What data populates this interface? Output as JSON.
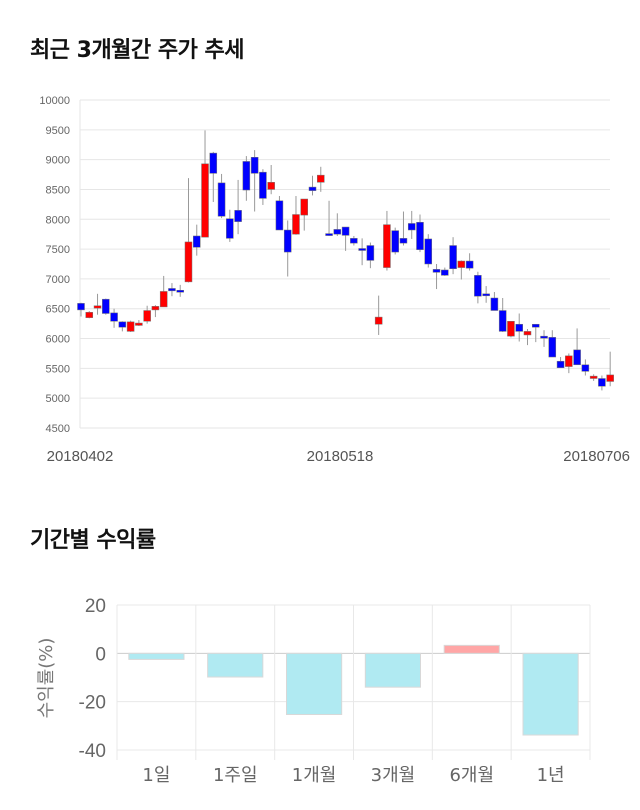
{
  "chart_data": [
    {
      "type": "candlestick",
      "title": "최근 3개월간 주가 추세",
      "ylim": [
        4500,
        10000
      ],
      "yticks": [
        "10000",
        "9500",
        "9000",
        "8500",
        "8000",
        "7500",
        "7000",
        "6500",
        "6000",
        "5500",
        "5000",
        "4500"
      ],
      "xticks": [
        "20180402",
        "20180518",
        "20180706"
      ],
      "up_color": "#ff0000",
      "down_color": "#0000ff",
      "candles": [
        [
          6590,
          6480,
          6600,
          6370
        ],
        [
          6350,
          6440,
          6460,
          6340
        ],
        [
          6510,
          6550,
          6750,
          6400
        ],
        [
          6660,
          6420,
          6670,
          6400
        ],
        [
          6430,
          6290,
          6500,
          6180
        ],
        [
          6280,
          6190,
          6290,
          6120
        ],
        [
          6120,
          6280,
          6300,
          6110
        ],
        [
          6220,
          6260,
          6310,
          6210
        ],
        [
          6290,
          6470,
          6550,
          6250
        ],
        [
          6480,
          6540,
          6560,
          6360
        ],
        [
          6530,
          6790,
          7050,
          6530
        ],
        [
          6840,
          6800,
          6930,
          6710
        ],
        [
          6810,
          6800,
          6900,
          6700
        ],
        [
          6950,
          7620,
          8690,
          6940
        ],
        [
          7720,
          7530,
          7910,
          7390
        ],
        [
          7700,
          8930,
          9490,
          7700
        ],
        [
          9110,
          8770,
          9130,
          8290
        ],
        [
          8610,
          8050,
          8760,
          8020
        ],
        [
          8010,
          7680,
          8160,
          7620
        ],
        [
          8150,
          7960,
          8660,
          7750
        ],
        [
          8970,
          8490,
          9060,
          8310
        ],
        [
          9040,
          8770,
          9160,
          8130
        ],
        [
          8790,
          8350,
          8840,
          8240
        ],
        [
          8500,
          8620,
          8910,
          8420
        ],
        [
          8310,
          7820,
          8390,
          7820
        ],
        [
          7820,
          7450,
          7980,
          7040
        ],
        [
          7750,
          8080,
          8390,
          7740
        ],
        [
          8070,
          8340,
          8340,
          7810
        ],
        [
          8540,
          8480,
          8730,
          8400
        ],
        [
          8620,
          8740,
          8880,
          8460
        ],
        [
          7760,
          7740,
          8310,
          7720
        ],
        [
          7830,
          7750,
          8100,
          7720
        ],
        [
          7870,
          7730,
          7870,
          7470
        ],
        [
          7680,
          7600,
          7720,
          7560
        ],
        [
          7510,
          7490,
          7680,
          7230
        ],
        [
          7560,
          7310,
          7610,
          7180
        ],
        [
          6240,
          6360,
          6720,
          6060
        ],
        [
          7190,
          7910,
          8140,
          7140
        ],
        [
          7810,
          7450,
          7860,
          7410
        ],
        [
          7680,
          7600,
          8130,
          7560
        ],
        [
          7930,
          7820,
          8140,
          7670
        ],
        [
          7950,
          7490,
          8080,
          7450
        ],
        [
          7670,
          7250,
          7750,
          7190
        ],
        [
          7160,
          7110,
          7250,
          6830
        ],
        [
          7150,
          7060,
          7190,
          7050
        ],
        [
          7560,
          7170,
          7700,
          7080
        ],
        [
          7190,
          7300,
          7310,
          6990
        ],
        [
          7300,
          7180,
          7430,
          7140
        ],
        [
          7060,
          6710,
          7120,
          6590
        ],
        [
          6750,
          6720,
          6880,
          6600
        ],
        [
          6680,
          6470,
          6780,
          6470
        ],
        [
          6470,
          6120,
          6680,
          6110
        ],
        [
          6040,
          6290,
          6290,
          6020
        ],
        [
          6240,
          6120,
          6420,
          5950
        ],
        [
          6060,
          6120,
          6160,
          5890
        ],
        [
          6240,
          6190,
          6240,
          5940
        ],
        [
          6040,
          6030,
          6140,
          5860
        ],
        [
          6020,
          5690,
          6140,
          5690
        ],
        [
          5620,
          5510,
          5690,
          5510
        ],
        [
          5530,
          5710,
          5750,
          5420
        ],
        [
          5810,
          5560,
          6170,
          5560
        ],
        [
          5560,
          5450,
          5650,
          5380
        ],
        [
          5330,
          5370,
          5400,
          5290
        ],
        [
          5330,
          5200,
          5380,
          5130
        ],
        [
          5280,
          5390,
          5780,
          5200
        ]
      ]
    },
    {
      "type": "bar",
      "title": "기간별 수익률",
      "ylabel": "수익률(%)",
      "ylim": [
        -40,
        20
      ],
      "yticks": [
        "20",
        "0",
        "-20",
        "-40"
      ],
      "categories": [
        "1일",
        "1주일",
        "1개월",
        "3개월",
        "6개월",
        "1년"
      ],
      "values": [
        -2.5,
        -9.8,
        -25.3,
        -14.0,
        3.3,
        -33.8
      ],
      "pos_color": "#ffa6a6",
      "neg_color": "#b0eaf2"
    }
  ]
}
